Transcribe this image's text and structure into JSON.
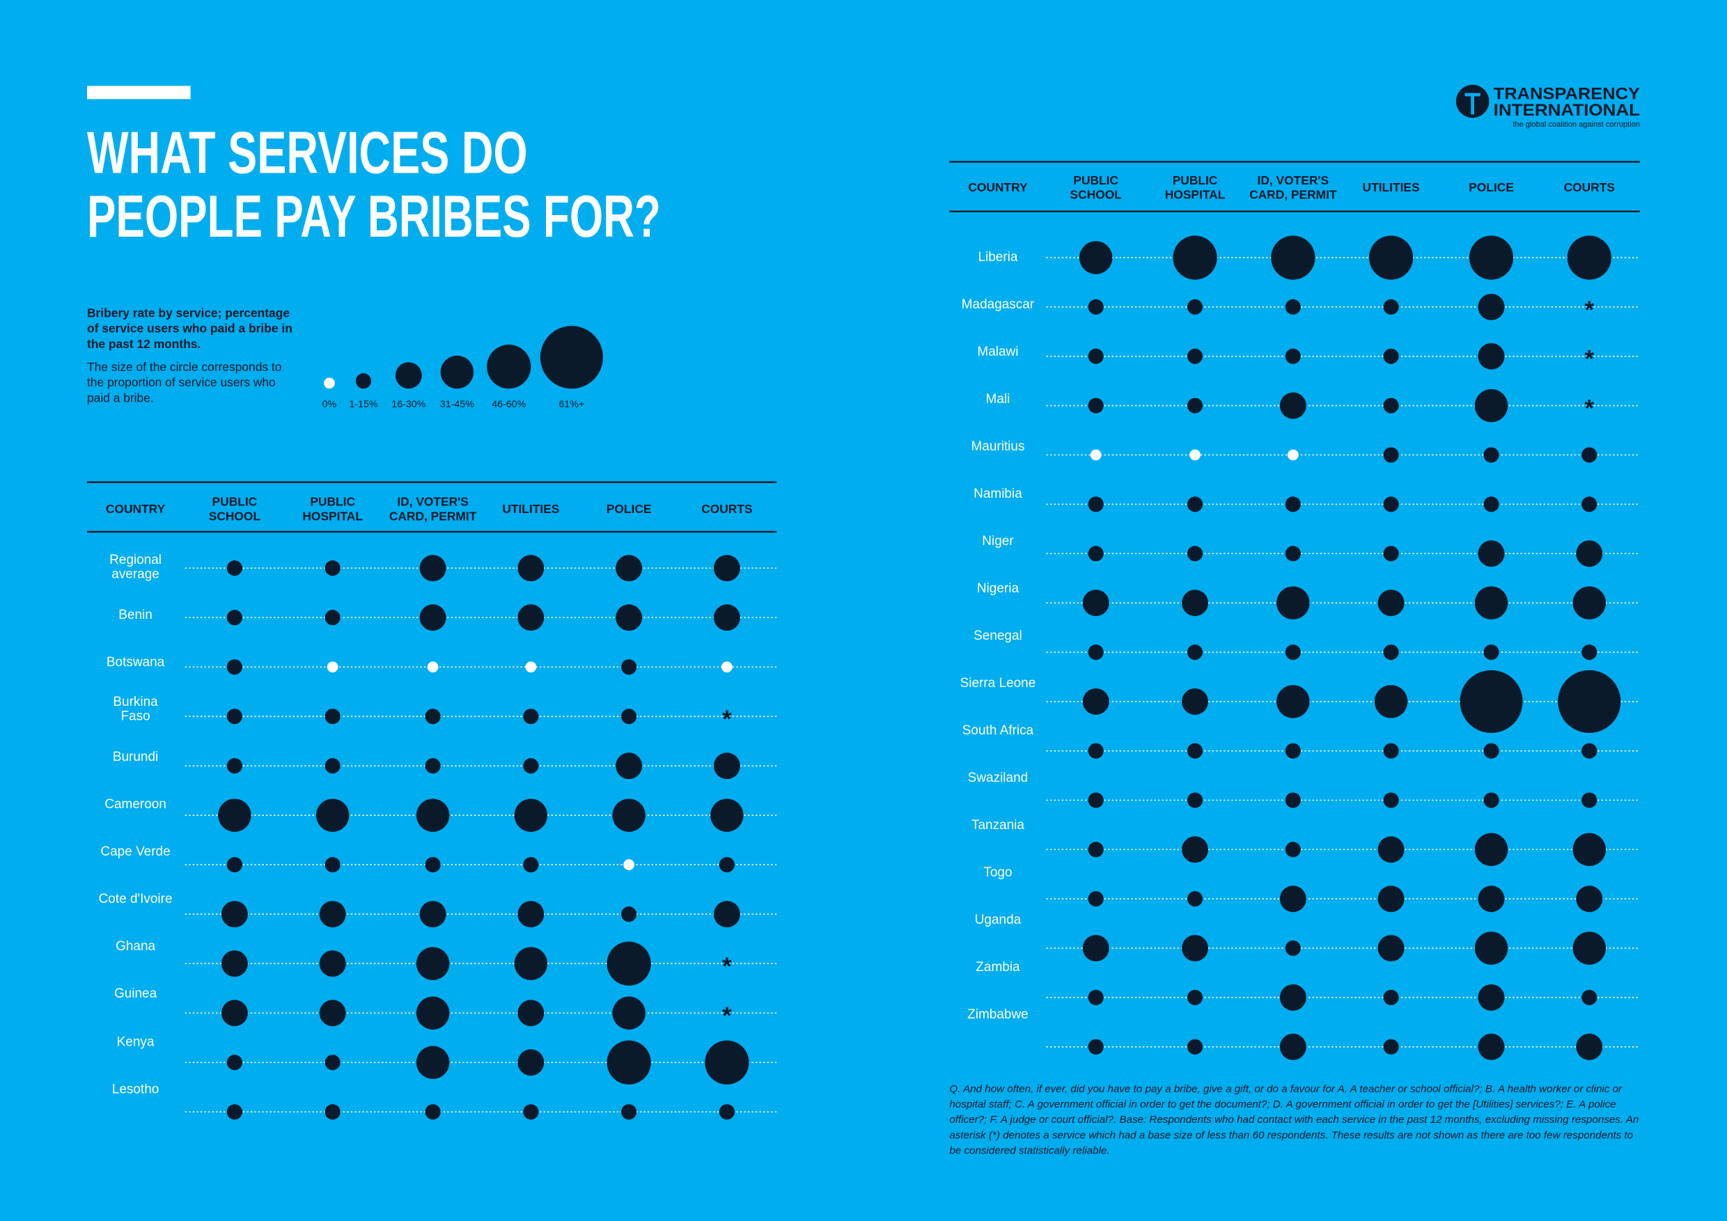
{
  "header": {
    "title_lines": [
      "WHAT SERVICES DO",
      "PEOPLE PAY BRIBES FOR?"
    ],
    "logo": {
      "name_lines": [
        "TRANSPARENCY",
        "INTERNATIONAL"
      ],
      "tagline": "the global coalition against corruption"
    }
  },
  "legend": {
    "heading": "Bribery rate by service; percentage of service users who paid a bribe in the past 12 months.",
    "description": "The size of the circle corresponds to the proportion of service users who paid a bribe.",
    "bins": [
      "0%",
      "1-15%",
      "16-30%",
      "31-45%",
      "46-60%",
      "61%+"
    ]
  },
  "tables": [
    {
      "columns": [
        [
          "COUNTRY"
        ],
        [
          "PUBLIC",
          "SCHOOL"
        ],
        [
          "PUBLIC",
          "HOSPITAL"
        ],
        [
          "ID, VOTER'S",
          "CARD, PERMIT"
        ],
        [
          "UTILITIES"
        ],
        [
          "POLICE"
        ],
        [
          "COURTS"
        ]
      ],
      "rows": [
        {
          "country": "Regional average",
          "cells": [
            1,
            1,
            2,
            2,
            2,
            2
          ]
        },
        {
          "country": "Benin",
          "cells": [
            1,
            1,
            2,
            2,
            2,
            2
          ]
        },
        {
          "country": "Botswana",
          "cells": [
            1,
            0,
            0,
            0,
            1,
            0
          ]
        },
        {
          "country": "Burkina Faso",
          "cells": [
            1,
            1,
            1,
            1,
            1,
            "*"
          ]
        },
        {
          "country": "Burundi",
          "cells": [
            1,
            1,
            1,
            1,
            2,
            2
          ]
        },
        {
          "country": "Cameroon",
          "cells": [
            3,
            3,
            3,
            3,
            3,
            3
          ]
        },
        {
          "country": "Cape Verde",
          "cells": [
            1,
            1,
            1,
            1,
            0,
            1
          ]
        },
        {
          "country": "Cote d'Ivoire",
          "cells": [
            2,
            2,
            2,
            2,
            1,
            2
          ]
        },
        {
          "country": "Ghana",
          "cells": [
            2,
            2,
            3,
            3,
            4,
            "*"
          ]
        },
        {
          "country": "Guinea",
          "cells": [
            2,
            2,
            3,
            2,
            3,
            "*"
          ]
        },
        {
          "country": "Kenya",
          "cells": [
            1,
            1,
            3,
            2,
            4,
            4
          ]
        },
        {
          "country": "Lesotho",
          "cells": [
            1,
            1,
            1,
            1,
            1,
            1
          ]
        }
      ]
    },
    {
      "columns": [
        [
          "COUNTRY"
        ],
        [
          "PUBLIC",
          "SCHOOL"
        ],
        [
          "PUBLIC",
          "HOSPITAL"
        ],
        [
          "ID, VOTER'S",
          "CARD, PERMIT"
        ],
        [
          "UTILITIES"
        ],
        [
          "POLICE"
        ],
        [
          "COURTS"
        ]
      ],
      "rows": [
        {
          "country": "Liberia",
          "cells": [
            3,
            4,
            4,
            4,
            4,
            4
          ]
        },
        {
          "country": "Madagascar",
          "cells": [
            1,
            1,
            1,
            1,
            2,
            "*"
          ]
        },
        {
          "country": "Malawi",
          "cells": [
            1,
            1,
            1,
            1,
            2,
            "*"
          ]
        },
        {
          "country": "Mali",
          "cells": [
            1,
            1,
            2,
            1,
            3,
            "*"
          ]
        },
        {
          "country": "Mauritius",
          "cells": [
            0,
            0,
            0,
            1,
            1,
            1
          ]
        },
        {
          "country": "Namibia",
          "cells": [
            1,
            1,
            1,
            1,
            1,
            1
          ]
        },
        {
          "country": "Niger",
          "cells": [
            1,
            1,
            1,
            1,
            2,
            2
          ]
        },
        {
          "country": "Nigeria",
          "cells": [
            2,
            2,
            3,
            2,
            3,
            3
          ]
        },
        {
          "country": "Senegal",
          "cells": [
            1,
            1,
            1,
            1,
            1,
            1
          ]
        },
        {
          "country": "Sierra Leone",
          "cells": [
            2,
            2,
            3,
            3,
            5,
            5
          ]
        },
        {
          "country": "South Africa",
          "cells": [
            1,
            1,
            1,
            1,
            1,
            1
          ]
        },
        {
          "country": "Swaziland",
          "cells": [
            1,
            1,
            1,
            1,
            1,
            1
          ]
        },
        {
          "country": "Tanzania",
          "cells": [
            1,
            2,
            1,
            2,
            3,
            3
          ]
        },
        {
          "country": "Togo",
          "cells": [
            1,
            1,
            2,
            2,
            2,
            2
          ]
        },
        {
          "country": "Uganda",
          "cells": [
            2,
            2,
            1,
            2,
            3,
            3
          ]
        },
        {
          "country": "Zambia",
          "cells": [
            1,
            1,
            2,
            1,
            2,
            1
          ]
        },
        {
          "country": "Zimbabwe",
          "cells": [
            1,
            1,
            2,
            1,
            2,
            2
          ]
        }
      ]
    }
  ],
  "footnote": "Q. And how often, if ever, did you have to pay a bribe, give a gift, or do a favour for A. A teacher or school official?; B. A health worker or clinic or hospital staff; C. A government official in order to get the document?; D. A government official in order to get the [Utilities] services?; E. A police officer?; F. A judge or court official?. Base: Respondents who had contact with each service in the past 12 months, excluding missing responses. An asterisk (*) denotes a service which had a base size of less than 60 respondents. These results are not shown as there are too few respondents to be considered statistically reliable."
}
